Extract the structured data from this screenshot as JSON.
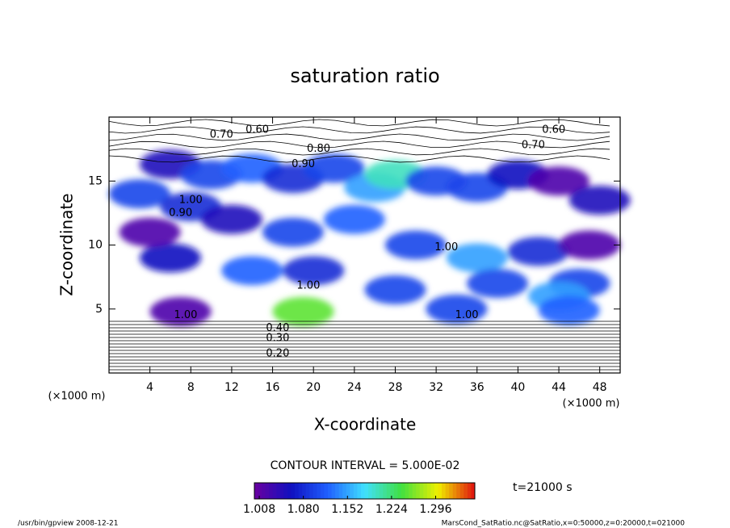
{
  "chart_data": {
    "type": "contour",
    "title": "saturation ratio",
    "x_label": "X-coordinate",
    "y_label": "Z-coordinate",
    "x_unit": "(×1000 m)",
    "y_unit": "(×1000 m)",
    "xlim": [
      0,
      50
    ],
    "ylim": [
      0,
      20
    ],
    "xticks": [
      4,
      8,
      12,
      16,
      20,
      24,
      28,
      32,
      36,
      40,
      44,
      48
    ],
    "yticks": [
      5,
      10,
      15
    ],
    "contour_interval": "CONTOUR INTERVAL = 5.000E-02",
    "colorbar_lim": [
      1.0,
      1.36
    ],
    "colorbar_ticks": [
      1.008,
      {
        "value": 1.08,
        "label": "1.080"
      },
      1.152,
      1.224,
      1.296
    ],
    "colormap": [
      "#6a00a0",
      "#1010c0",
      "#2060ff",
      "#40e0ff",
      "#40e040",
      "#f0f000",
      "#e01010"
    ],
    "time_label": "t=21000 s",
    "footer_left": "/usr/bin/gpview  2008-12-21",
    "footer_right": "MarsCond_SatRatio.nc@SatRatio,x=0:50000,z=0:20000,t=021000",
    "shaded": [
      [
        6,
        16.3,
        1.05
      ],
      [
        10,
        15.5,
        1.1
      ],
      [
        14,
        16,
        1.12
      ],
      [
        18,
        15.2,
        1.08
      ],
      [
        22,
        16,
        1.1
      ],
      [
        26,
        14.5,
        1.15
      ],
      [
        28,
        15.5,
        1.2
      ],
      [
        32,
        15,
        1.1
      ],
      [
        36,
        14.5,
        1.1
      ],
      [
        40,
        15.5,
        1.06
      ],
      [
        44,
        15,
        1.02
      ],
      [
        48,
        13.5,
        1.05
      ],
      [
        3,
        14,
        1.1
      ],
      [
        8,
        13,
        1.08
      ],
      [
        12,
        12,
        1.05
      ],
      [
        18,
        11,
        1.1
      ],
      [
        24,
        12,
        1.12
      ],
      [
        30,
        10,
        1.1
      ],
      [
        36,
        9,
        1.15
      ],
      [
        42,
        9.5,
        1.08
      ],
      [
        46,
        7,
        1.1
      ],
      [
        6,
        9,
        1.06
      ],
      [
        14,
        8,
        1.12
      ],
      [
        20,
        8,
        1.08
      ],
      [
        28,
        6.5,
        1.1
      ],
      [
        38,
        7,
        1.1
      ],
      [
        44,
        6,
        1.15
      ],
      [
        7,
        4.8,
        1.02
      ],
      [
        19,
        4.8,
        1.25
      ],
      [
        34,
        5,
        1.1
      ],
      [
        45,
        4.9,
        1.12
      ],
      [
        4,
        11,
        1.02
      ],
      [
        47,
        10,
        1.02
      ]
    ],
    "contour_labels": [
      {
        "x": 11,
        "z": 18.6,
        "label": "0.70"
      },
      {
        "x": 14.5,
        "z": 19,
        "label": "0.60"
      },
      {
        "x": 20.5,
        "z": 17.5,
        "label": "0.80"
      },
      {
        "x": 19,
        "z": 16.3,
        "label": "0.90"
      },
      {
        "x": 43.5,
        "z": 19,
        "label": "0.60"
      },
      {
        "x": 41.5,
        "z": 17.8,
        "label": "0.70"
      },
      {
        "x": 8,
        "z": 13.5,
        "label": "1.00"
      },
      {
        "x": 7,
        "z": 12.5,
        "label": "0.90"
      },
      {
        "x": 33,
        "z": 9.8,
        "label": "1.00"
      },
      {
        "x": 19.5,
        "z": 6.8,
        "label": "1.00"
      },
      {
        "x": 7.5,
        "z": 4.5,
        "label": "1.00"
      },
      {
        "x": 35,
        "z": 4.5,
        "label": "1.00"
      },
      {
        "x": 16.5,
        "z": 3.5,
        "label": "0.40"
      },
      {
        "x": 16.5,
        "z": 2.7,
        "label": "0.30"
      },
      {
        "x": 16.5,
        "z": 1.5,
        "label": "0.20"
      }
    ]
  }
}
